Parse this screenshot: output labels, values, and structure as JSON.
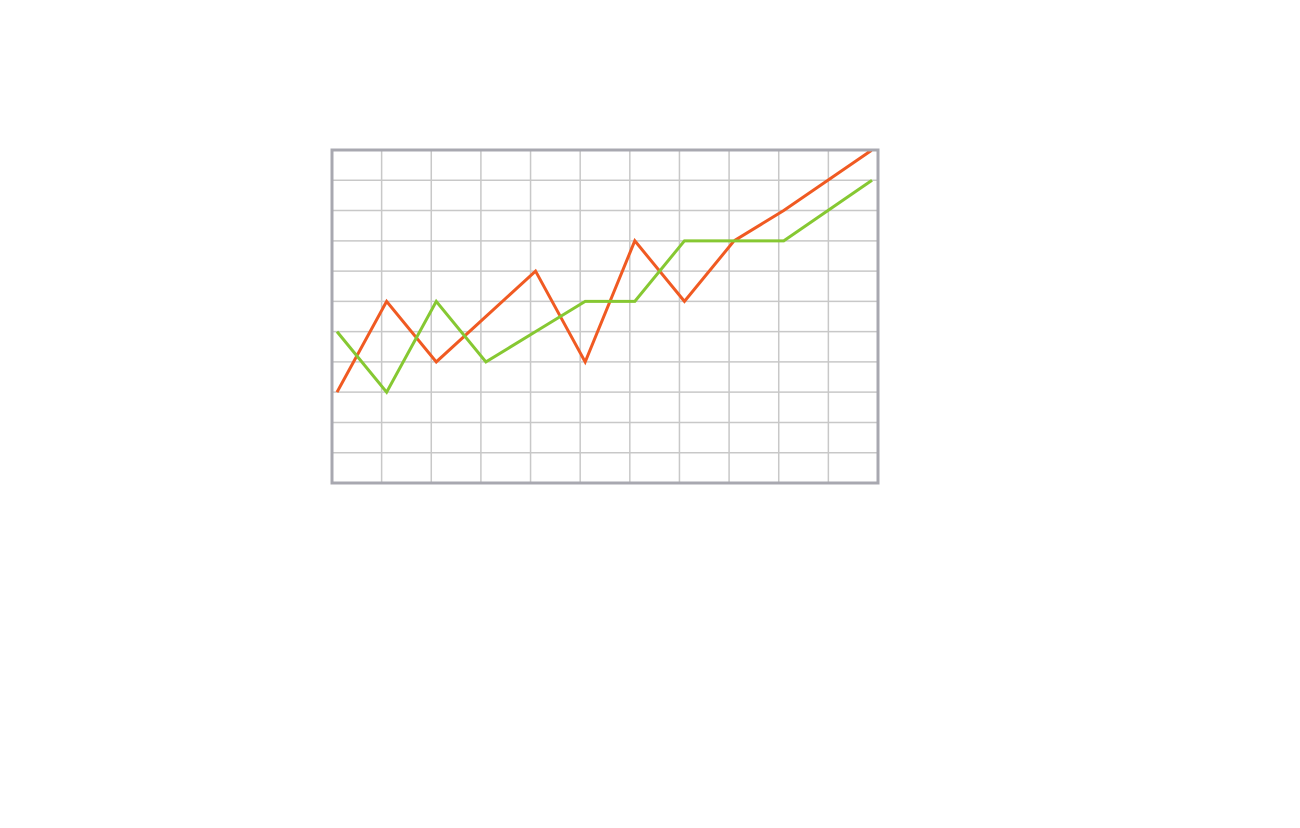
{
  "chart_data": {
    "type": "line",
    "title": "",
    "xlabel": "",
    "ylabel": "",
    "x": [
      0,
      1,
      2,
      3,
      4,
      5,
      6,
      7,
      8,
      9,
      10
    ],
    "xlim": [
      0,
      11
    ],
    "ylim": [
      0,
      11
    ],
    "grid": true,
    "legend": false,
    "series": [
      {
        "color": "#f05a22",
        "values": [
          3,
          6,
          4,
          5.5,
          7,
          4,
          8,
          6,
          8,
          9,
          11
        ]
      },
      {
        "color": "#86c832",
        "values": [
          5,
          3,
          6,
          4,
          5,
          6,
          6,
          8,
          8,
          8,
          10
        ]
      }
    ],
    "colors": {
      "frame": "#a8a8b0",
      "grid": "#c8c8c8",
      "background": "#ffffff"
    }
  }
}
